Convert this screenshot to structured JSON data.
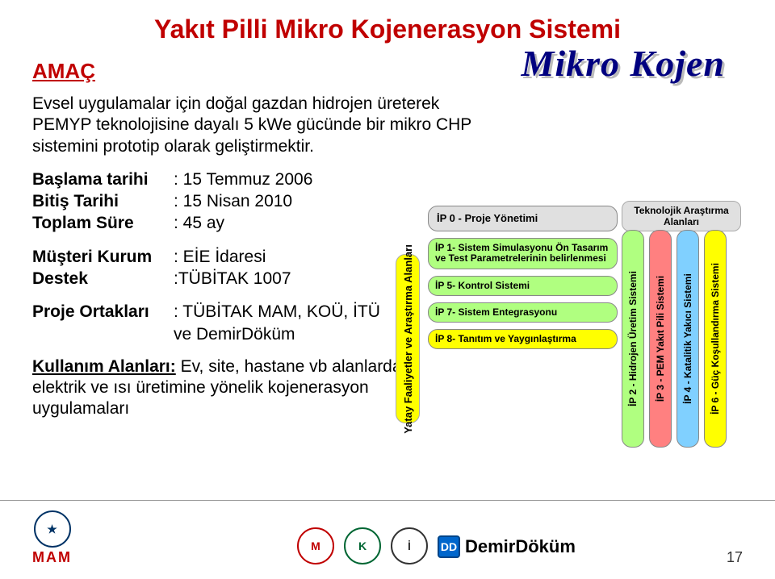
{
  "title": "Yakıt Pilli Mikro Kojenerasyon Sistemi",
  "amac_label": "AMAÇ",
  "description": "Evsel uygulamalar için doğal gazdan hidrojen üreterek PEMYP teknolojisine dayalı 5 kWe gücünde bir mikro CHP sistemini prototip olarak geliştirmektir.",
  "details": {
    "baslama": {
      "label": "Başlama tarihi",
      "value": ": 15 Temmuz 2006"
    },
    "bitis": {
      "label": "Bitiş Tarihi",
      "value": ": 15 Nisan 2010"
    },
    "sure": {
      "label": "Toplam Süre",
      "value": ": 45 ay"
    },
    "musteri": {
      "label": "Müşteri Kurum",
      "value": ": EİE İdaresi"
    },
    "destek": {
      "label": "Destek",
      "value": ":TÜBİTAK 1007"
    },
    "ortak_label": "Proje Ortakları",
    "ortak_value": ": TÜBİTAK MAM, KOÜ, İTÜ ve DemirDöküm"
  },
  "usage": {
    "label": "Kullanım Alanları:",
    "text": " Ev, site, hastane vb alanlarda elektrik ve ısı üretimine yönelik kojenerasyon uygulamaları"
  },
  "wordart": "Mikro Kojen",
  "diagram": {
    "yatay_label": "Yatay Faaliyetler ve Araştırma Alanları",
    "tek_header": "Teknolojik Araştırma Alanları",
    "horizontal": [
      {
        "text": "İP 0 - Proje Yönetimi",
        "color": "#e0e0e0"
      },
      {
        "text": "İP 1- Sistem Simulasyonu Ön Tasarım ve Test Parametrelerinin belirlenmesi",
        "color": "#b0ff80"
      },
      {
        "text": "İP 5- Kontrol Sistemi",
        "color": "#b0ff80"
      },
      {
        "text": "İP 7- Sistem Entegrasyonu",
        "color": "#b0ff80"
      },
      {
        "text": "İP 8- Tanıtım ve Yaygınlaştırma",
        "color": "#ffff00"
      }
    ],
    "vertical": [
      {
        "text": "İP 2 - Hidrojen Üretim Sistemi",
        "color": "#b0ff80"
      },
      {
        "text": "İP 3 - PEM Yakıt Pili Sistemi",
        "color": "#ff8080"
      },
      {
        "text": "İP 4 - Katalitik Yakıcı Sistemi",
        "color": "#80d0ff"
      },
      {
        "text": "İP 6 - Güç Koşullandırma Sistemi",
        "color": "#ffff00"
      }
    ]
  },
  "footer": {
    "page_number": "17",
    "mam": "MAM",
    "demirdokum": "DemirDöküm"
  }
}
